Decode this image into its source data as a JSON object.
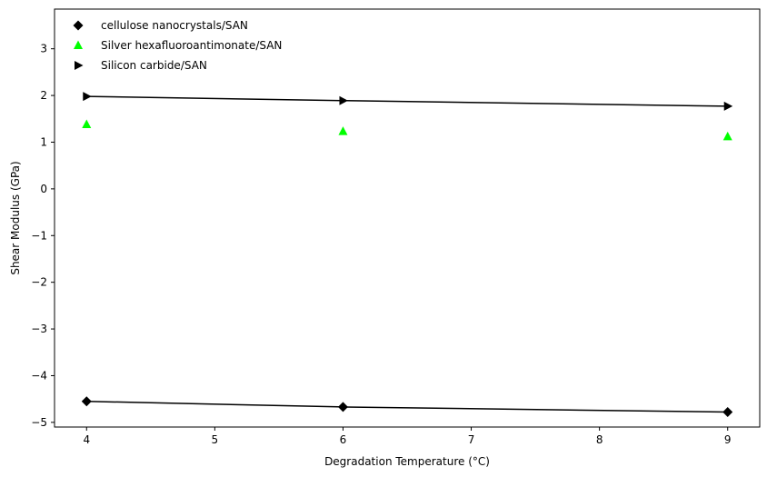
{
  "chart_data": {
    "type": "scatter",
    "xlabel": "Degradation Temperature (°C)",
    "ylabel": "Shear Modulus (GPa)",
    "xlim": [
      3.75,
      9.25
    ],
    "ylim": [
      -5.1,
      3.85
    ],
    "xticks": [
      4,
      5,
      6,
      7,
      8,
      9
    ],
    "yticks": [
      -5,
      -4,
      -3,
      -2,
      -1,
      0,
      1,
      2,
      3
    ],
    "xtick_labels": [
      "4",
      "5",
      "6",
      "7",
      "8",
      "9"
    ],
    "ytick_labels": [
      "−5",
      "−4",
      "−3",
      "−2",
      "−1",
      "0",
      "1",
      "2",
      "3"
    ],
    "grid": false,
    "legend_position": "top-left",
    "series": [
      {
        "name": "cellulose nanocrystals/SAN",
        "marker": "diamond",
        "color": "#000000",
        "line": true,
        "x": [
          4,
          6,
          9
        ],
        "y": [
          -4.55,
          -4.67,
          -4.78
        ]
      },
      {
        "name": "Silver hexafluoroantimonate/SAN",
        "marker": "triangle-up",
        "color": "#00ff00",
        "line": false,
        "x": [
          4,
          6,
          9
        ],
        "y": [
          1.38,
          1.23,
          1.12
        ]
      },
      {
        "name": "Silicon carbide/SAN",
        "marker": "triangle-right",
        "color": "#000000",
        "line": true,
        "x": [
          4,
          6,
          9
        ],
        "y": [
          1.98,
          1.89,
          1.77
        ]
      }
    ]
  }
}
